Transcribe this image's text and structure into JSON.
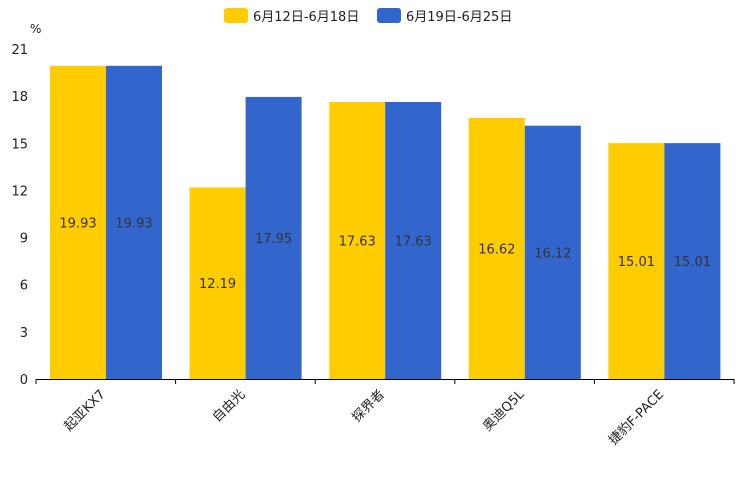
{
  "chart_data": {
    "type": "bar",
    "unit": "%",
    "categories": [
      "起亚KX7",
      "自由光",
      "探界者",
      "奥迪Q5L",
      "捷豹F-PACE"
    ],
    "series": [
      {
        "name": "6月12日-6月18日",
        "color": "#FFCC00",
        "values": [
          19.93,
          12.19,
          17.63,
          16.62,
          15.01
        ]
      },
      {
        "name": "6月19日-6月25日",
        "color": "#3366CC",
        "values": [
          19.93,
          17.95,
          17.63,
          16.12,
          15.01
        ]
      }
    ],
    "ylim": [
      0,
      21
    ],
    "yticks": [
      0,
      3,
      6,
      9,
      12,
      15,
      18,
      21
    ],
    "legend_position": "top-center",
    "grid": false
  }
}
